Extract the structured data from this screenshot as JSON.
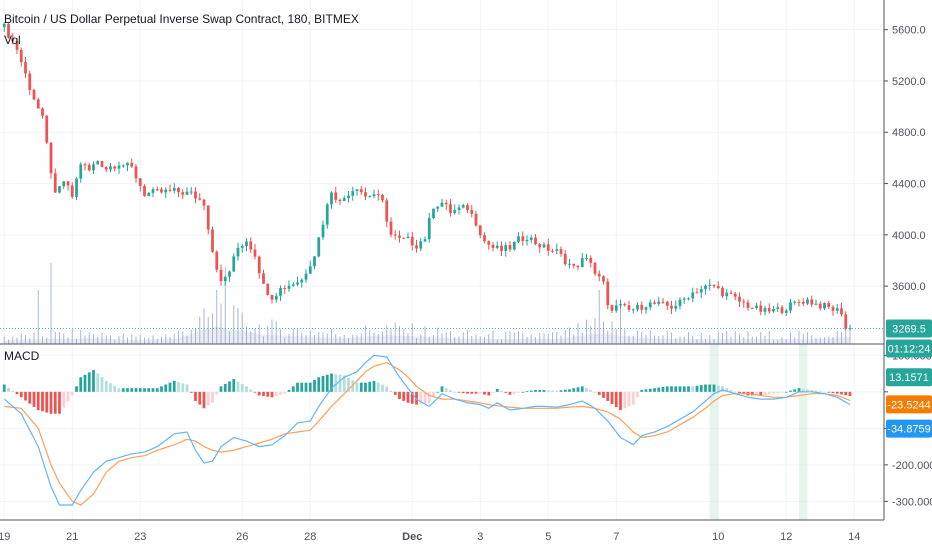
{
  "header": {
    "title": "Bitcoin / US Dollar Perpetual Inverse Swap Contract, 180, BITMEX",
    "volume_label": "Vol",
    "macd_label": "MACD"
  },
  "price_tag": {
    "value": "3269.5",
    "countdown": "01:12:24",
    "color": "#26a69a"
  },
  "macd_tags": [
    {
      "value": "13.1571",
      "color": "#26a69a"
    },
    {
      "value": "-23.5244",
      "color": "#f57c00"
    },
    {
      "value": "-34.8759",
      "color": "#2196f3"
    }
  ],
  "colors": {
    "up": "#26a69a",
    "down": "#ef5350",
    "macd_line": "#64b5f6",
    "signal_line": "#ff9f5a",
    "hist_up_strong": "#26a69a",
    "hist_up_weak": "#b2dfdb",
    "hist_down_strong": "#ef5350",
    "hist_down_weak": "#ffcdd2",
    "volume": "#90a4d4"
  },
  "chart_data": [
    {
      "type": "candlestick",
      "y_ticks": [
        5600,
        5200,
        4800,
        4400,
        4000,
        3600
      ],
      "y_tick_labels": [
        "5600.0",
        "5200.0",
        "4800.0",
        "4400.0",
        "4000.0",
        "3600.0"
      ],
      "ylim": [
        3180,
        5800
      ],
      "x_ticks": [
        {
          "label": "19",
          "t": 0
        },
        {
          "label": "21",
          "t": 16
        },
        {
          "label": "23",
          "t": 32
        },
        {
          "label": "26",
          "t": 56
        },
        {
          "label": "28",
          "t": 72
        },
        {
          "label": "Dec",
          "t": 96
        },
        {
          "label": "3",
          "t": 112
        },
        {
          "label": "5",
          "t": 128
        },
        {
          "label": "7",
          "t": 144
        },
        {
          "label": "10",
          "t": 168
        },
        {
          "label": "12",
          "t": 184
        },
        {
          "label": "14",
          "t": 200
        }
      ],
      "close_path": [
        [
          0,
          5620
        ],
        [
          3,
          5450
        ],
        [
          6,
          5150
        ],
        [
          9,
          4900
        ],
        [
          11,
          4500
        ],
        [
          12,
          4300
        ],
        [
          14,
          4420
        ],
        [
          16,
          4300
        ],
        [
          18,
          4560
        ],
        [
          20,
          4500
        ],
        [
          22,
          4580
        ],
        [
          24,
          4520
        ],
        [
          27,
          4560
        ],
        [
          30,
          4520
        ],
        [
          33,
          4320
        ],
        [
          36,
          4330
        ],
        [
          40,
          4340
        ],
        [
          44,
          4320
        ],
        [
          47,
          4250
        ],
        [
          49,
          3880
        ],
        [
          51,
          3620
        ],
        [
          53,
          3720
        ],
        [
          55,
          3900
        ],
        [
          57,
          3960
        ],
        [
          59,
          3850
        ],
        [
          61,
          3600
        ],
        [
          63,
          3520
        ],
        [
          65,
          3580
        ],
        [
          67,
          3610
        ],
        [
          70,
          3650
        ],
        [
          73,
          3850
        ],
        [
          75,
          4100
        ],
        [
          77,
          4350
        ],
        [
          79,
          4250
        ],
        [
          81,
          4330
        ],
        [
          83,
          4380
        ],
        [
          85,
          4300
        ],
        [
          87,
          4320
        ],
        [
          89,
          4250
        ],
        [
          91,
          4000
        ],
        [
          93,
          3960
        ],
        [
          95,
          3960
        ],
        [
          97,
          3920
        ],
        [
          99,
          3980
        ],
        [
          101,
          4230
        ],
        [
          103,
          4250
        ],
        [
          105,
          4180
        ],
        [
          107,
          4200
        ],
        [
          109,
          4210
        ],
        [
          111,
          4100
        ],
        [
          113,
          3950
        ],
        [
          115,
          3900
        ],
        [
          117,
          3880
        ],
        [
          119,
          3900
        ],
        [
          121,
          3960
        ],
        [
          123,
          3990
        ],
        [
          125,
          3940
        ],
        [
          127,
          3900
        ],
        [
          130,
          3870
        ],
        [
          132,
          3800
        ],
        [
          134,
          3740
        ],
        [
          136,
          3800
        ],
        [
          138,
          3800
        ],
        [
          139,
          3700
        ],
        [
          141,
          3620
        ],
        [
          142,
          3430
        ],
        [
          145,
          3440
        ],
        [
          147,
          3410
        ],
        [
          149,
          3430
        ],
        [
          151,
          3460
        ],
        [
          153,
          3460
        ],
        [
          155,
          3450
        ],
        [
          157,
          3440
        ],
        [
          159,
          3470
        ],
        [
          161,
          3530
        ],
        [
          163,
          3570
        ],
        [
          165,
          3590
        ],
        [
          167,
          3600
        ],
        [
          169,
          3550
        ],
        [
          171,
          3520
        ],
        [
          173,
          3480
        ],
        [
          175,
          3450
        ],
        [
          177,
          3420
        ],
        [
          179,
          3400
        ],
        [
          181,
          3410
        ],
        [
          183,
          3420
        ],
        [
          185,
          3450
        ],
        [
          187,
          3480
        ],
        [
          189,
          3490
        ],
        [
          191,
          3460
        ],
        [
          193,
          3440
        ],
        [
          195,
          3420
        ],
        [
          197,
          3400
        ],
        [
          198,
          3270
        ],
        [
          199,
          3269.5
        ]
      ],
      "last_price": 3269.5
    },
    {
      "type": "bar",
      "name": "Vol",
      "levels": [
        [
          0,
          0.08
        ],
        [
          10,
          0.1
        ],
        [
          20,
          0.12
        ],
        [
          30,
          0.08
        ],
        [
          40,
          0.1
        ],
        [
          50,
          0.35
        ],
        [
          60,
          0.2
        ],
        [
          70,
          0.15
        ],
        [
          80,
          0.12
        ],
        [
          90,
          0.18
        ],
        [
          100,
          0.14
        ],
        [
          110,
          0.1
        ],
        [
          120,
          0.1
        ],
        [
          130,
          0.1
        ],
        [
          140,
          0.22
        ],
        [
          150,
          0.12
        ],
        [
          160,
          0.1
        ],
        [
          170,
          0.1
        ],
        [
          180,
          0.1
        ],
        [
          190,
          0.1
        ],
        [
          199,
          0.15
        ]
      ],
      "spikes": [
        [
          11,
          0.9
        ],
        [
          8,
          0.6
        ],
        [
          50,
          0.6
        ],
        [
          52,
          0.85
        ],
        [
          51,
          0.45
        ],
        [
          140,
          0.6
        ],
        [
          145,
          0.5
        ]
      ]
    },
    {
      "type": "line",
      "name": "MACD",
      "y_ticks": [
        100,
        0,
        -100,
        -200,
        -300
      ],
      "y_tick_labels": [
        "100.0000",
        "",
        "",
        "-200.0000",
        "-300.0000"
      ],
      "ylim": [
        -340,
        120
      ],
      "macd_path": [
        [
          0,
          -20
        ],
        [
          4,
          -60
        ],
        [
          8,
          -150
        ],
        [
          11,
          -260
        ],
        [
          13,
          -310
        ],
        [
          16,
          -310
        ],
        [
          18,
          -270
        ],
        [
          21,
          -220
        ],
        [
          24,
          -190
        ],
        [
          27,
          -180
        ],
        [
          30,
          -170
        ],
        [
          33,
          -165
        ],
        [
          36,
          -150
        ],
        [
          40,
          -115
        ],
        [
          43,
          -110
        ],
        [
          45,
          -160
        ],
        [
          47,
          -195
        ],
        [
          49,
          -190
        ],
        [
          51,
          -150
        ],
        [
          54,
          -125
        ],
        [
          57,
          -135
        ],
        [
          60,
          -150
        ],
        [
          63,
          -145
        ],
        [
          66,
          -120
        ],
        [
          69,
          -85
        ],
        [
          72,
          -80
        ],
        [
          74,
          -40
        ],
        [
          77,
          10
        ],
        [
          80,
          40
        ],
        [
          83,
          55
        ],
        [
          85,
          80
        ],
        [
          87,
          100
        ],
        [
          90,
          95
        ],
        [
          93,
          40
        ],
        [
          95,
          10
        ],
        [
          97,
          -20
        ],
        [
          100,
          -40
        ],
        [
          103,
          -5
        ],
        [
          106,
          -20
        ],
        [
          109,
          -30
        ],
        [
          112,
          -35
        ],
        [
          114,
          -45
        ],
        [
          116,
          -30
        ],
        [
          119,
          -50
        ],
        [
          122,
          -45
        ],
        [
          125,
          -40
        ],
        [
          127,
          -40
        ],
        [
          130,
          -42
        ],
        [
          133,
          -35
        ],
        [
          136,
          -25
        ],
        [
          139,
          -45
        ],
        [
          142,
          -80
        ],
        [
          145,
          -125
        ],
        [
          148,
          -145
        ],
        [
          150,
          -120
        ],
        [
          153,
          -110
        ],
        [
          156,
          -95
        ],
        [
          159,
          -75
        ],
        [
          162,
          -55
        ],
        [
          165,
          -25
        ],
        [
          167,
          -5
        ],
        [
          169,
          5
        ],
        [
          172,
          -5
        ],
        [
          175,
          -15
        ],
        [
          178,
          -20
        ],
        [
          181,
          -20
        ],
        [
          184,
          -15
        ],
        [
          187,
          0
        ],
        [
          190,
          0
        ],
        [
          193,
          -5
        ],
        [
          196,
          -15
        ],
        [
          199,
          -34.88
        ]
      ],
      "signal_path": [
        [
          0,
          -40
        ],
        [
          4,
          -45
        ],
        [
          8,
          -100
        ],
        [
          11,
          -200
        ],
        [
          13,
          -250
        ],
        [
          16,
          -300
        ],
        [
          18,
          -310
        ],
        [
          21,
          -280
        ],
        [
          24,
          -220
        ],
        [
          27,
          -190
        ],
        [
          30,
          -180
        ],
        [
          33,
          -175
        ],
        [
          36,
          -160
        ],
        [
          40,
          -145
        ],
        [
          43,
          -130
        ],
        [
          45,
          -135
        ],
        [
          47,
          -150
        ],
        [
          49,
          -160
        ],
        [
          51,
          -165
        ],
        [
          54,
          -160
        ],
        [
          57,
          -150
        ],
        [
          60,
          -140
        ],
        [
          63,
          -130
        ],
        [
          66,
          -115
        ],
        [
          69,
          -110
        ],
        [
          72,
          -105
        ],
        [
          74,
          -80
        ],
        [
          77,
          -40
        ],
        [
          80,
          -5
        ],
        [
          83,
          30
        ],
        [
          85,
          55
        ],
        [
          87,
          70
        ],
        [
          90,
          80
        ],
        [
          93,
          60
        ],
        [
          95,
          40
        ],
        [
          97,
          15
        ],
        [
          100,
          -10
        ],
        [
          103,
          -20
        ],
        [
          106,
          -20
        ],
        [
          109,
          -25
        ],
        [
          112,
          -30
        ],
        [
          114,
          -35
        ],
        [
          116,
          -38
        ],
        [
          119,
          -42
        ],
        [
          122,
          -45
        ],
        [
          125,
          -45
        ],
        [
          127,
          -45
        ],
        [
          130,
          -45
        ],
        [
          133,
          -42
        ],
        [
          136,
          -40
        ],
        [
          139,
          -45
        ],
        [
          142,
          -55
        ],
        [
          145,
          -75
        ],
        [
          148,
          -110
        ],
        [
          150,
          -125
        ],
        [
          153,
          -120
        ],
        [
          156,
          -110
        ],
        [
          159,
          -90
        ],
        [
          162,
          -70
        ],
        [
          165,
          -45
        ],
        [
          167,
          -25
        ],
        [
          169,
          -10
        ],
        [
          172,
          -5
        ],
        [
          175,
          -5
        ],
        [
          178,
          -10
        ],
        [
          181,
          -15
        ],
        [
          184,
          -15
        ],
        [
          187,
          -10
        ],
        [
          190,
          -5
        ],
        [
          193,
          -5
        ],
        [
          196,
          -10
        ],
        [
          199,
          -23.52
        ]
      ],
      "highlight_bands": [
        [
          166,
          168
        ],
        [
          187,
          189
        ]
      ]
    }
  ]
}
